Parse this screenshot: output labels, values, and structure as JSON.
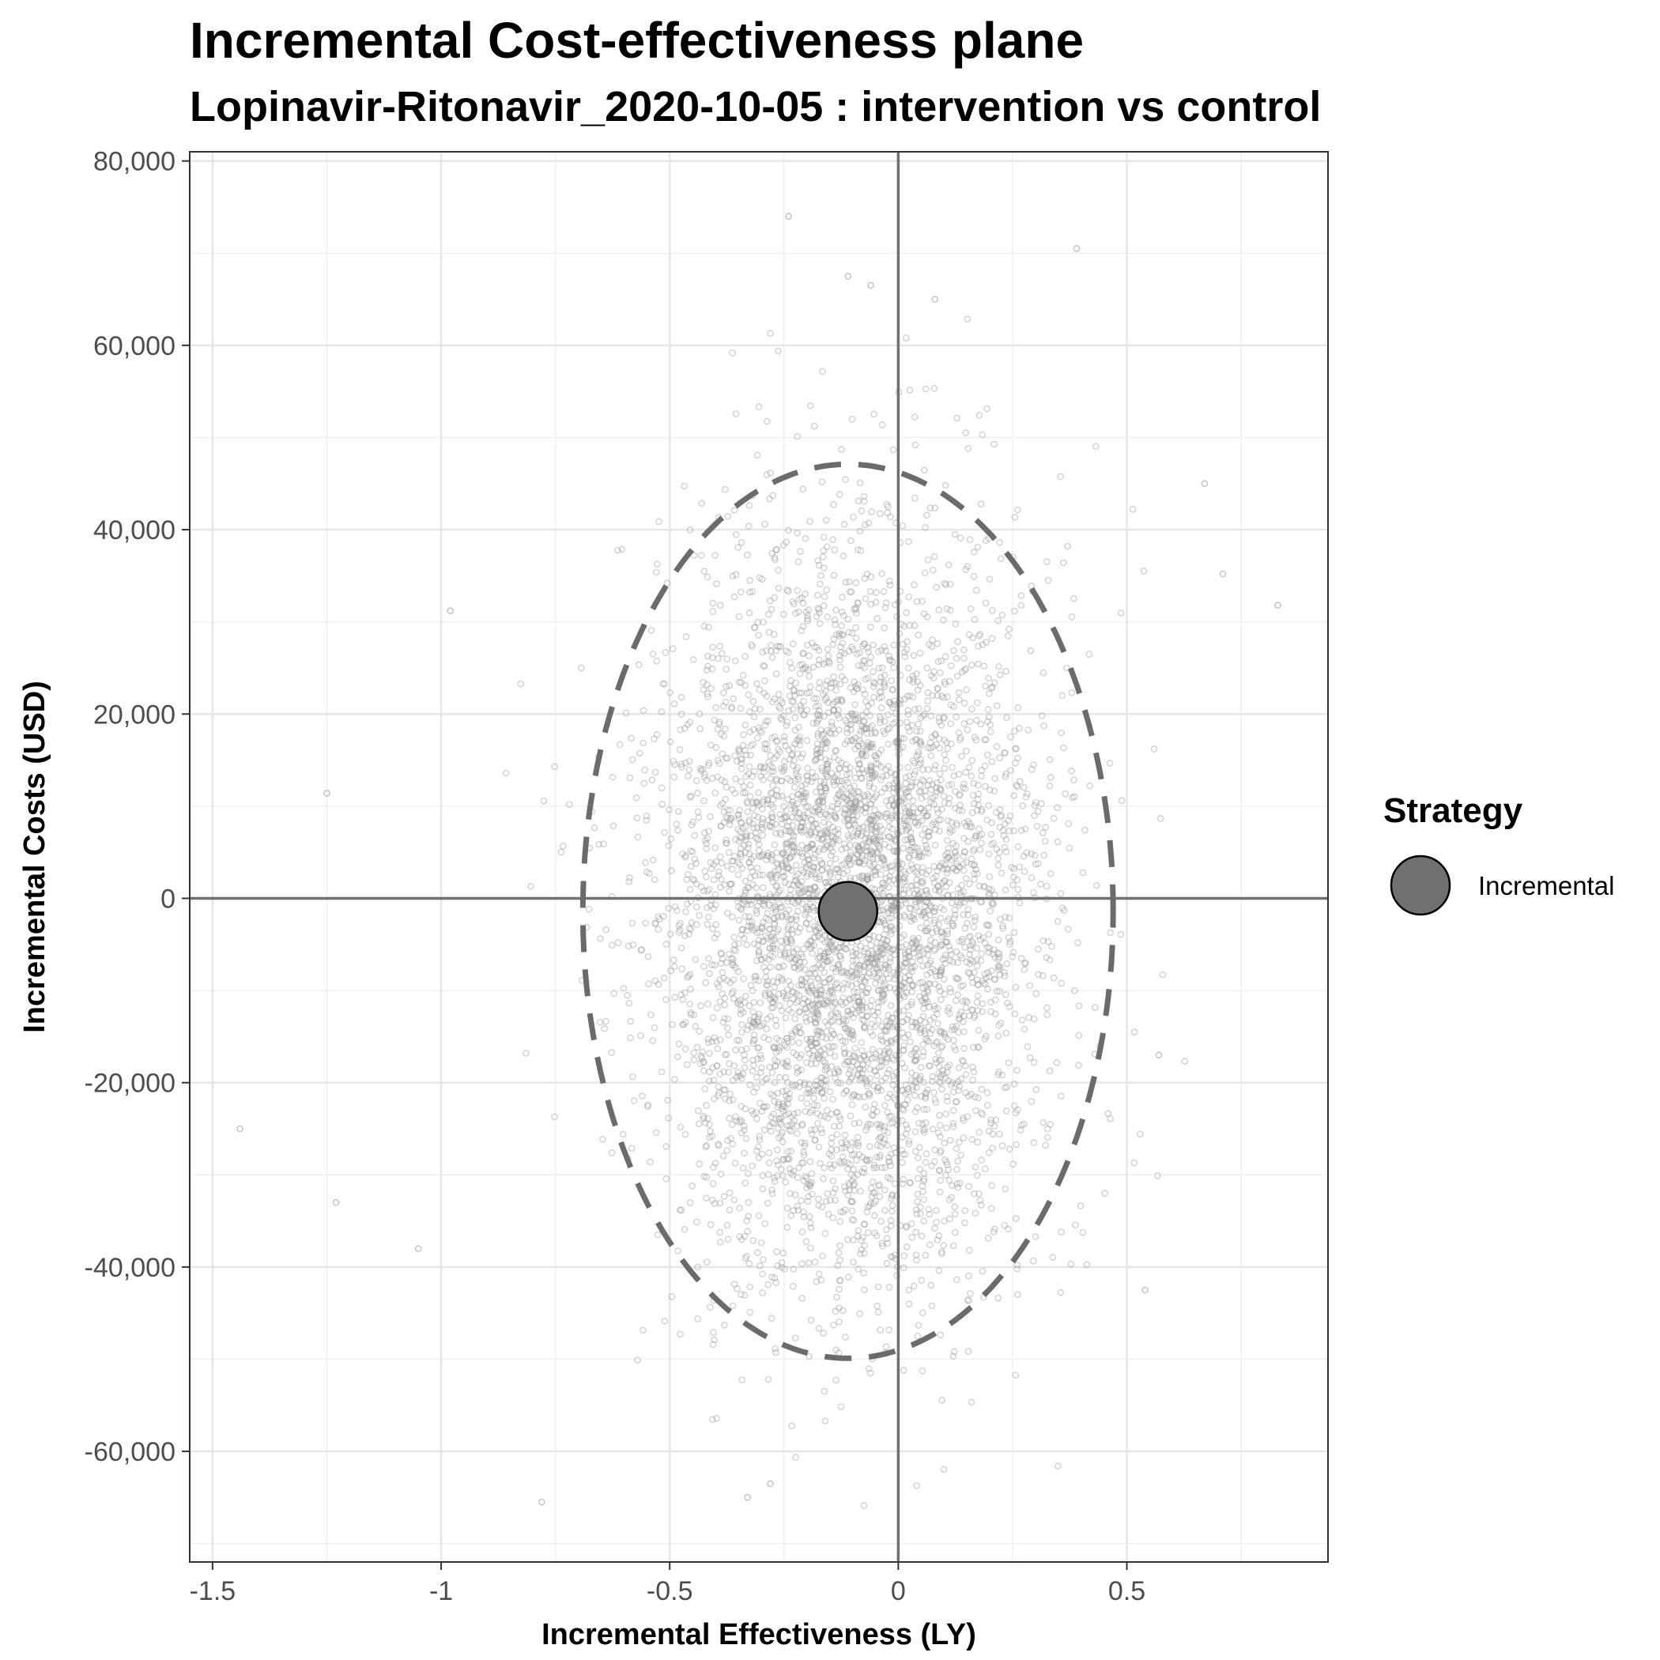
{
  "chart_data": {
    "type": "scatter",
    "title": "Incremental Cost-effectiveness plane",
    "subtitle": "Lopinavir-Ritonavir_2020-10-05 : intervention vs control",
    "xlabel": "Incremental Effectiveness (LY)",
    "ylabel": "Incremental Costs (USD)",
    "xlim": [
      -1.55,
      0.94
    ],
    "ylim": [
      -72000,
      81000
    ],
    "x_ticks": [
      -1.5,
      -1,
      -0.5,
      0,
      0.5
    ],
    "x_tick_labels": [
      "-1.5",
      "-1",
      "-0.5",
      "0",
      "0.5"
    ],
    "y_ticks": [
      80000,
      60000,
      40000,
      20000,
      0,
      -20000,
      -40000,
      -60000
    ],
    "y_tick_labels": [
      "80,000",
      "60,000",
      "40,000",
      "20,000",
      "0",
      "-20,000",
      "-40,000",
      "-60,000"
    ],
    "grid": true,
    "reference_lines": {
      "x": 0,
      "y": 0
    },
    "mean_point": {
      "x": -0.11,
      "y": -1400
    },
    "ellipse_95": {
      "cx": -0.11,
      "cy": -1400,
      "rx": 0.58,
      "ry": 48500
    },
    "psa_samples": {
      "count": 5000,
      "distribution": "bivariate normal",
      "x_mean": -0.11,
      "x_sd": 0.2,
      "y_mean": -1400,
      "y_sd": 19500,
      "x_range": [
        -1.44,
        0.83
      ],
      "y_range": [
        -66000,
        74000
      ]
    },
    "outlier_points": [
      {
        "x": -0.24,
        "y": 74000
      },
      {
        "x": 0.39,
        "y": 70500
      },
      {
        "x": -0.11,
        "y": 67500
      },
      {
        "x": -0.06,
        "y": 66500
      },
      {
        "x": 0.08,
        "y": 65000
      },
      {
        "x": 0.83,
        "y": 31800
      },
      {
        "x": 0.71,
        "y": 35200
      },
      {
        "x": 0.67,
        "y": 45000
      },
      {
        "x": -1.25,
        "y": 11400
      },
      {
        "x": -1.44,
        "y": -25000
      },
      {
        "x": -1.23,
        "y": -33000
      },
      {
        "x": -1.05,
        "y": -38000
      },
      {
        "x": -0.78,
        "y": -65500
      },
      {
        "x": -0.28,
        "y": -63500
      },
      {
        "x": -0.33,
        "y": -65000
      },
      {
        "x": 0.54,
        "y": -42500
      },
      {
        "x": 0.57,
        "y": -17000
      },
      {
        "x": -0.98,
        "y": 31200
      }
    ],
    "series": [
      {
        "name": "Incremental",
        "color": "#6e6e6e"
      }
    ],
    "legend": {
      "title": "Strategy",
      "position": "right",
      "items": [
        "Incremental"
      ]
    }
  }
}
